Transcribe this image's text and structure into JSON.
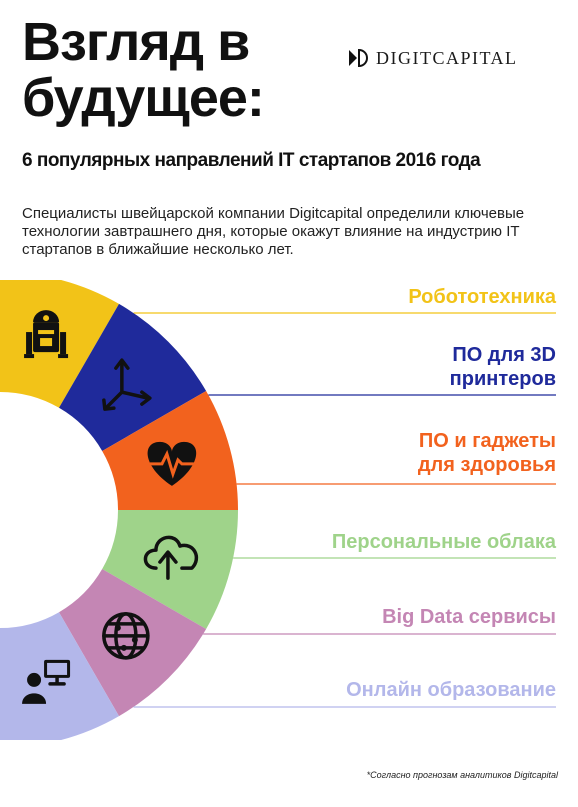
{
  "title": {
    "line1": "Взгляд в",
    "line2": "будущее:"
  },
  "subtitle": "6 популярных направлений IT стартапов 2016 года",
  "logo": {
    "text": "DIGITCAPITAL",
    "icon": "digitcapital-logo-icon"
  },
  "intro": "Специалисты швейцарской компании Digitcapital определили ключевые технологии завтрашнего дня, которые окажут влияние на индустрию IT стартапов в ближайшие несколько лет.",
  "directions": [
    {
      "label": "Робототехника",
      "color": "#f2c318",
      "icon": "robot-icon"
    },
    {
      "label": "ПО для 3D\nпринтеров",
      "color": "#1f2a9b",
      "icon": "3d-axes-icon"
    },
    {
      "label": "ПО и гаджеты\nдля здоровья",
      "color": "#f2621e",
      "icon": "heart-pulse-icon"
    },
    {
      "label": "Персональные облака",
      "color": "#9fd38a",
      "icon": "cloud-upload-icon"
    },
    {
      "label": "Big Data сервисы",
      "color": "#c486b4",
      "icon": "globe-network-icon"
    },
    {
      "label": "Онлайн образование",
      "color": "#b3b7ea",
      "icon": "online-learning-icon"
    }
  ],
  "footnote": "*Согласно прогнозам аналитиков Digitcapital"
}
